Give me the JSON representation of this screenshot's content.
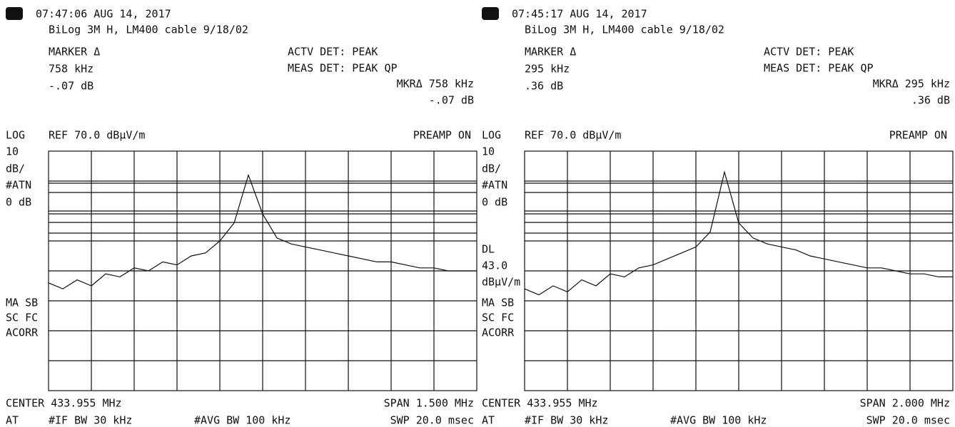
{
  "panels": [
    {
      "timestamp": "07:47:06 AUG 14, 2017",
      "setup": "BiLog 3M H,  LM400 cable  9/18/02",
      "marker_label": "MARKER Δ",
      "marker_freq": "758 kHz",
      "marker_level": "-.07 dB",
      "actv_det": "ACTV DET: PEAK",
      "meas_det": "MEAS DET: PEAK QP",
      "mkr_delta": "MKRΔ 758 kHz",
      "mkr_level": "-.07 dB",
      "scale_log": "LOG",
      "scale_div": "10",
      "scale_unit": "dB/",
      "atn": "#ATN",
      "atn_value": "0 dB",
      "ref": "REF 70.0 dBµV/m",
      "preamp": "PREAMP ON",
      "flags": [
        "MA SB",
        "SC FC",
        "ACORR"
      ],
      "center": "CENTER 433.955 MHz",
      "span": "SPAN 1.500 MHz",
      "at": "AT",
      "if_bw": "#IF BW 30 kHz",
      "avg_bw": "#AVG BW 100 kHz",
      "swp": "SWP 20.0 msec",
      "trace": [
        26,
        24,
        27,
        25,
        29,
        28,
        31,
        30,
        33,
        32,
        35,
        36,
        40,
        46,
        62,
        49,
        41,
        39,
        38,
        37,
        36,
        35,
        34,
        33,
        33,
        32,
        31,
        31,
        30,
        30,
        30
      ]
    },
    {
      "timestamp": "07:45:17 AUG 14, 2017",
      "setup": "BiLog 3M H,  LM400 cable  9/18/02",
      "marker_label": "MARKER Δ",
      "marker_freq": "295 kHz",
      "marker_level": ".36 dB",
      "actv_det": "ACTV DET: PEAK",
      "meas_det": "MEAS DET: PEAK QP",
      "mkr_delta": "MKRΔ 295 kHz",
      "mkr_level": ".36 dB",
      "scale_log": "LOG",
      "scale_div": "10",
      "scale_unit": "dB/",
      "atn": "#ATN",
      "atn_value": "0 dB",
      "ref": "REF 70.0 dBµV/m",
      "preamp": "PREAMP ON",
      "dl": [
        "DL",
        "43.0",
        "dBµV/m"
      ],
      "flags": [
        "MA SB",
        "SC FC",
        "ACORR"
      ],
      "center": "CENTER 433.955 MHz",
      "span": "SPAN 2.000 MHz",
      "at": "AT",
      "if_bw": "#IF BW 30 kHz",
      "avg_bw": "#AVG BW 100 kHz",
      "swp": "SWP 20.0 msec",
      "trace": [
        24,
        22,
        25,
        23,
        27,
        25,
        29,
        28,
        31,
        32,
        34,
        36,
        38,
        43,
        63,
        46,
        41,
        39,
        38,
        37,
        35,
        34,
        33,
        32,
        31,
        31,
        30,
        29,
        29,
        28,
        28
      ]
    }
  ]
}
